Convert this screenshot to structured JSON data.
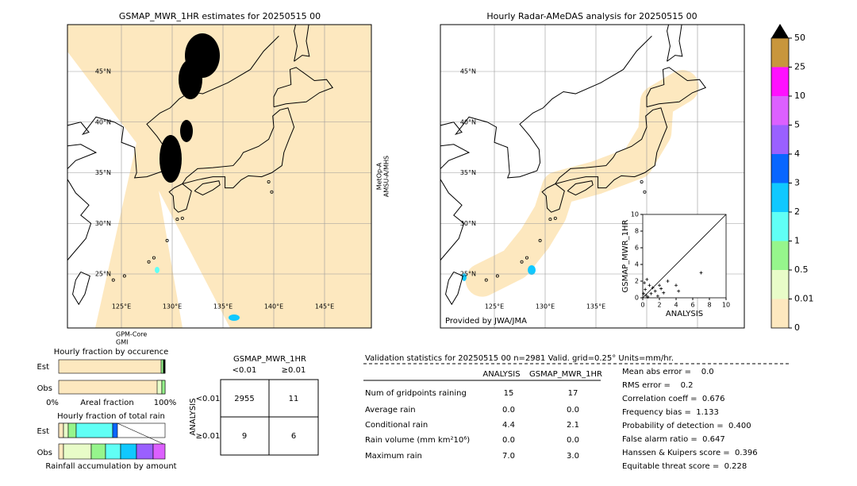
{
  "left_map": {
    "title": "GSMAP_MWR_1HR estimates for 20250515 00",
    "lat_labels": [
      "45°N",
      "40°N",
      "35°N",
      "30°N",
      "25°N"
    ],
    "lon_labels": [
      "125°E",
      "130°E",
      "135°E",
      "140°E",
      "145°E"
    ],
    "satellite_right": [
      "MetOp-A",
      "AMSU-A/MHS"
    ],
    "satellite_bottom": [
      "GPM-Core",
      "GMI"
    ]
  },
  "right_map": {
    "title": "Hourly Radar-AMeDAS analysis for 20250515 00",
    "lat_labels": [
      "45°N",
      "40°N",
      "35°N",
      "30°N",
      "25°N"
    ],
    "lon_labels": [
      "125°E",
      "130°E",
      "135°E"
    ],
    "credit": "Provided by JWA/JMA"
  },
  "colorbar": {
    "levels": [
      0,
      0.01,
      0.5,
      1,
      2,
      3,
      4,
      5,
      10,
      25,
      50
    ],
    "colors": [
      "#fde8bf",
      "#e8fcc8",
      "#96f58c",
      "#60fff5",
      "#10c8ff",
      "#0866ff",
      "#9a60ff",
      "#dc60ff",
      "#ff10ff",
      "#c8963c"
    ],
    "extend_color": "#000000"
  },
  "chart_data": {
    "type": "scatter",
    "xlabel": "ANALYSIS",
    "ylabel": "GSMAP_MWR_1HR",
    "x": [
      0.1,
      0.2,
      0.3,
      0.4,
      0.5,
      0.6,
      0.8,
      1.0,
      1.2,
      1.5,
      1.8,
      2.0,
      2.2,
      2.5,
      3.0,
      4.0,
      4.3,
      7.0
    ],
    "y": [
      0.5,
      1.8,
      1.0,
      0.3,
      2.2,
      0.1,
      1.5,
      0.5,
      1.2,
      0.8,
      0.2,
      1.5,
      1.1,
      0.6,
      2.0,
      1.5,
      0.8,
      3.0
    ],
    "color": "#000000",
    "xlim": [
      0,
      10
    ],
    "ylim": [
      0,
      10
    ],
    "xticks": [
      0,
      2,
      4,
      6,
      8,
      10
    ],
    "yticks": [
      0,
      2,
      4,
      6,
      8,
      10
    ]
  },
  "fraction_occurrence": {
    "title": "Hourly fraction by occurence",
    "rows": [
      "Est",
      "Obs"
    ],
    "axis": [
      "0%",
      "Areal fraction",
      "100%"
    ]
  },
  "fraction_rain": {
    "title": "Hourly fraction of total rain",
    "rows": [
      "Est",
      "Obs"
    ],
    "caption": "Rainfall accumulation by amount"
  },
  "contingency": {
    "title": "GSMAP_MWR_1HR",
    "columns": [
      "<0.01",
      "≥0.01"
    ],
    "row_title": "ANALYSIS",
    "rows": [
      "<0.01",
      "≥0.01"
    ],
    "cells": [
      [
        "2955",
        "11"
      ],
      [
        "9",
        "6"
      ]
    ]
  },
  "validation": {
    "header": "Validation statistics for 20250515 00  n=2981 Valid. grid=0.25° Units=mm/hr.",
    "columns": [
      "ANALYSIS",
      "GSMAP_MWR_1HR"
    ],
    "rows": [
      [
        "Num of gridpoints raining",
        "15",
        "17"
      ],
      [
        "Average rain",
        "0.0",
        "0.0"
      ],
      [
        "Conditional rain",
        "4.4",
        "2.1"
      ],
      [
        "Rain volume (mm km²10⁶)",
        "0.0",
        "0.0"
      ],
      [
        "Maximum rain",
        "7.0",
        "3.0"
      ]
    ],
    "scores": [
      "Mean abs error =    0.0",
      "RMS error =    0.2",
      "Correlation coeff =  0.676",
      "Frequency bias =  1.133",
      "Probability of detection =  0.400",
      "False alarm ratio =  0.647",
      "Hanssen & Kuipers score =  0.396",
      "Equitable threat score =  0.228"
    ]
  }
}
